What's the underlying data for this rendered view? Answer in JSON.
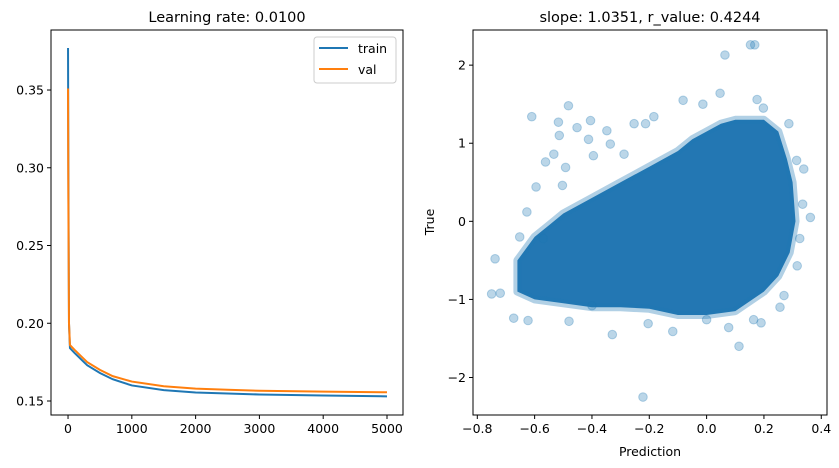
{
  "chart_data": [
    {
      "type": "line",
      "title": "Learning rate: 0.0100",
      "xlabel": "",
      "ylabel": "",
      "xlim": [
        -267,
        5251
      ],
      "ylim": [
        0.141,
        0.3886
      ],
      "xticks": [
        0,
        1000,
        2000,
        3000,
        4000,
        5000
      ],
      "xtick_labels": [
        "0",
        "1000",
        "2000",
        "3000",
        "4000",
        "5000"
      ],
      "yticks": [
        0.15,
        0.2,
        0.25,
        0.3,
        0.35
      ],
      "ytick_labels": [
        "0.15",
        "0.20",
        "0.25",
        "0.30",
        "0.35"
      ],
      "grid": false,
      "legend": "top-right",
      "series": [
        {
          "name": "train",
          "color": "#1f77b4",
          "x": [
            0,
            5,
            15,
            30,
            100,
            200,
            300,
            500,
            700,
            1000,
            1500,
            2000,
            2500,
            3000,
            4000,
            5000
          ],
          "y": [
            0.377,
            0.3,
            0.2,
            0.184,
            0.181,
            0.177,
            0.173,
            0.168,
            0.164,
            0.16,
            0.157,
            0.1555,
            0.1548,
            0.1542,
            0.1535,
            0.153
          ]
        },
        {
          "name": "val",
          "color": "#ff7f0e",
          "x": [
            0,
            5,
            15,
            30,
            100,
            200,
            300,
            500,
            700,
            1000,
            1500,
            2000,
            2500,
            3000,
            4000,
            5000
          ],
          "y": [
            0.351,
            0.28,
            0.2,
            0.186,
            0.183,
            0.179,
            0.175,
            0.17,
            0.166,
            0.1625,
            0.1595,
            0.158,
            0.1572,
            0.1566,
            0.156,
            0.1556
          ]
        }
      ]
    },
    {
      "type": "scatter",
      "title": "slope: 1.0351, r_value: 0.4244",
      "xlabel": "Prediction",
      "ylabel": "True",
      "xlim": [
        -0.815,
        0.42
      ],
      "ylim": [
        -2.48,
        2.45
      ],
      "xticks": [
        -0.8,
        -0.6,
        -0.4,
        -0.2,
        0.0,
        0.2,
        0.4
      ],
      "xtick_labels": [
        "−0.8",
        "−0.6",
        "−0.4",
        "−0.2",
        "0.0",
        "0.2",
        "0.4"
      ],
      "yticks": [
        -2,
        -1,
        0,
        1,
        2
      ],
      "ytick_labels": [
        "−2",
        "−1",
        "0",
        "1",
        "2"
      ],
      "grid": false,
      "color": "#1f77b4",
      "alpha": 0.3,
      "dense_region": [
        [
          -0.66,
          -0.5
        ],
        [
          -0.6,
          -0.2
        ],
        [
          -0.55,
          -0.05
        ],
        [
          -0.5,
          0.1
        ],
        [
          -0.4,
          0.3
        ],
        [
          -0.3,
          0.5
        ],
        [
          -0.2,
          0.7
        ],
        [
          -0.1,
          0.9
        ],
        [
          -0.05,
          1.05
        ],
        [
          0.0,
          1.15
        ],
        [
          0.05,
          1.25
        ],
        [
          0.1,
          1.3
        ],
        [
          0.2,
          1.3
        ],
        [
          0.25,
          1.15
        ],
        [
          0.28,
          0.8
        ],
        [
          0.3,
          0.5
        ],
        [
          0.31,
          0.0
        ],
        [
          0.29,
          -0.4
        ],
        [
          0.25,
          -0.7
        ],
        [
          0.2,
          -0.9
        ],
        [
          0.1,
          -1.15
        ],
        [
          0.0,
          -1.2
        ],
        [
          -0.1,
          -1.2
        ],
        [
          -0.2,
          -1.12
        ],
        [
          -0.3,
          -1.1
        ],
        [
          -0.4,
          -1.1
        ],
        [
          -0.5,
          -1.05
        ],
        [
          -0.6,
          -1.0
        ],
        [
          -0.66,
          -0.9
        ]
      ],
      "points": [
        [
          0.064,
          2.13
        ],
        [
          0.153,
          2.26
        ],
        [
          0.168,
          2.26
        ],
        [
          0.047,
          1.64
        ],
        [
          -0.082,
          1.55
        ],
        [
          -0.013,
          1.5
        ],
        [
          0.176,
          1.56
        ],
        [
          -0.482,
          1.48
        ],
        [
          -0.61,
          1.34
        ],
        [
          -0.517,
          1.27
        ],
        [
          -0.514,
          1.1
        ],
        [
          -0.405,
          1.29
        ],
        [
          -0.452,
          1.2
        ],
        [
          -0.348,
          1.16
        ],
        [
          -0.336,
          0.99
        ],
        [
          -0.412,
          1.05
        ],
        [
          -0.253,
          1.25
        ],
        [
          -0.213,
          1.25
        ],
        [
          -0.184,
          1.34
        ],
        [
          0.287,
          1.25
        ],
        [
          0.198,
          1.45
        ],
        [
          0.339,
          0.67
        ],
        [
          0.362,
          0.05
        ],
        [
          0.335,
          0.22
        ],
        [
          -0.533,
          0.86
        ],
        [
          -0.562,
          0.76
        ],
        [
          -0.492,
          0.69
        ],
        [
          -0.595,
          0.44
        ],
        [
          -0.627,
          0.12
        ],
        [
          -0.738,
          -0.48
        ],
        [
          -0.75,
          -0.93
        ],
        [
          -0.72,
          -0.92
        ],
        [
          -0.673,
          -1.24
        ],
        [
          -0.623,
          -1.27
        ],
        [
          -0.329,
          -1.45
        ],
        [
          -0.222,
          -2.25
        ],
        [
          0.113,
          -1.6
        ],
        [
          0.256,
          -1.1
        ],
        [
          0.27,
          -0.95
        ],
        [
          0.19,
          -1.3
        ],
        [
          0.077,
          -1.36
        ],
        [
          -0.118,
          -1.41
        ],
        [
          -0.4,
          -1.08
        ],
        [
          0.316,
          -0.57
        ],
        [
          0.325,
          -0.22
        ],
        [
          -0.288,
          0.86
        ],
        [
          -0.395,
          0.84
        ],
        [
          -0.503,
          0.46
        ],
        [
          0.314,
          0.78
        ],
        [
          0.164,
          -1.26
        ],
        [
          -0.204,
          -1.31
        ],
        [
          -0.48,
          -1.28
        ],
        [
          0.0,
          -1.26
        ],
        [
          -0.57,
          -0.22
        ],
        [
          -0.652,
          -0.2
        ]
      ]
    }
  ]
}
